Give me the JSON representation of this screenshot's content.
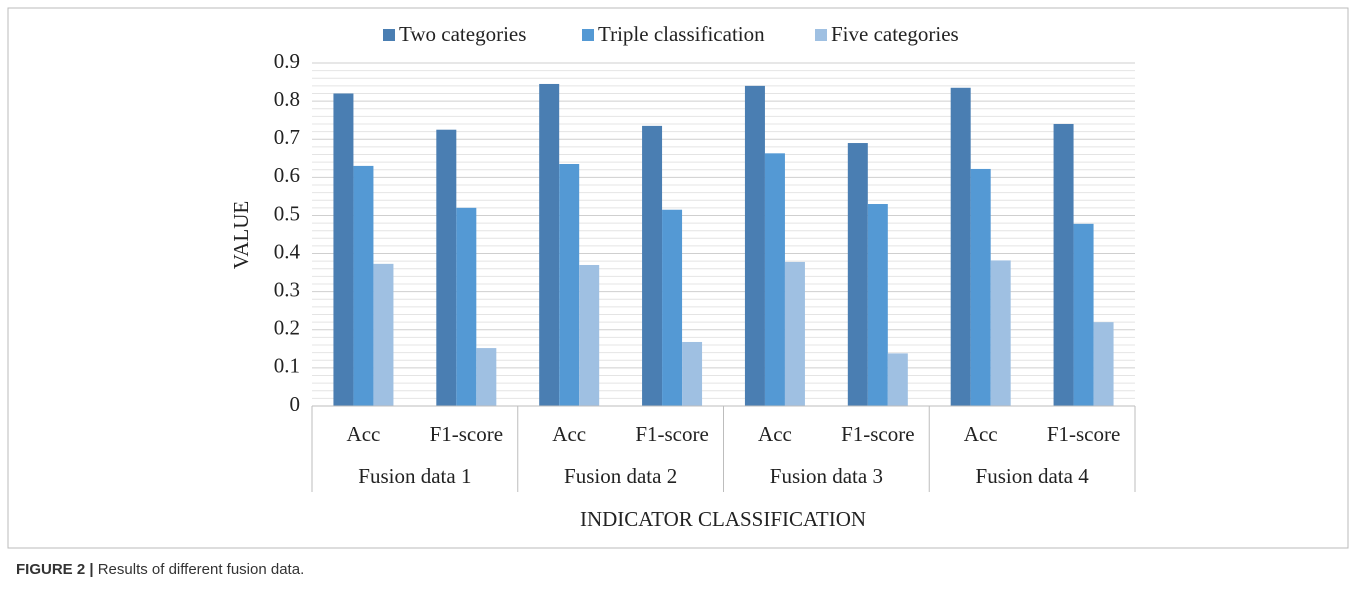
{
  "chart_data": {
    "type": "bar",
    "categories": [
      "Acc",
      "F1-score",
      "Acc",
      "F1-score",
      "Acc",
      "F1-score",
      "Acc",
      "F1-score"
    ],
    "groups": [
      "Fusion data 1",
      "Fusion data 2",
      "Fusion data 3",
      "Fusion data 4"
    ],
    "series": [
      {
        "name": "Two categories",
        "color": "#4a7eb2",
        "values": [
          0.82,
          0.725,
          0.845,
          0.735,
          0.84,
          0.69,
          0.835,
          0.74
        ]
      },
      {
        "name": "Triple classification",
        "color": "#5499d4",
        "values": [
          0.63,
          0.52,
          0.635,
          0.515,
          0.663,
          0.53,
          0.622,
          0.478
        ]
      },
      {
        "name": "Five categories",
        "color": "#9fc0e2",
        "values": [
          0.373,
          0.152,
          0.37,
          0.168,
          0.378,
          0.138,
          0.382,
          0.22
        ]
      }
    ],
    "ylim": [
      0,
      0.9
    ],
    "yticks": [
      0,
      0.1,
      0.2,
      0.3,
      0.4,
      0.5,
      0.6,
      0.7,
      0.8,
      0.9
    ],
    "grid": true,
    "minor_grid": true,
    "legend": "top",
    "ylabel": "VALUE",
    "xlabel": "INDICATOR CLASSIFICATION",
    "caption_label": "FIGURE 2 |",
    "caption_text": "Results of different fusion data."
  }
}
